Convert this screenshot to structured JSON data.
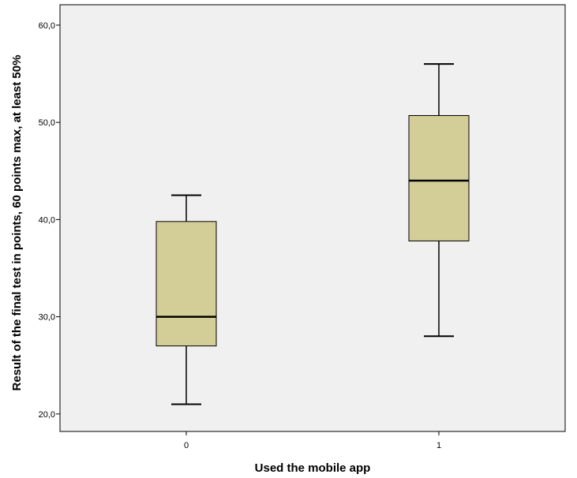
{
  "chart_data": {
    "type": "boxplot",
    "title": "",
    "xlabel": "Used the mobile app",
    "ylabel": "Result of the final test in points, 60 points max, at least 50%",
    "ylim": [
      18.2,
      62.1
    ],
    "y_ticks": [
      20,
      30,
      40,
      50,
      60
    ],
    "y_tick_labels": [
      "20,0",
      "30,0",
      "40,0",
      "50,0",
      "60,0"
    ],
    "categories": [
      "0",
      "1"
    ],
    "boxes": [
      {
        "category": "0",
        "whisker_low": 21.0,
        "q1": 27.0,
        "median": 30.0,
        "q3": 39.8,
        "whisker_high": 42.5
      },
      {
        "category": "1",
        "whisker_low": 28.0,
        "q1": 37.8,
        "median": 44.0,
        "q3": 50.7,
        "whisker_high": 56.0
      }
    ],
    "grid": false,
    "colors": {
      "plot_background": "#f0f0f0",
      "box_fill": "#d3ce97",
      "line": "#000000"
    }
  }
}
